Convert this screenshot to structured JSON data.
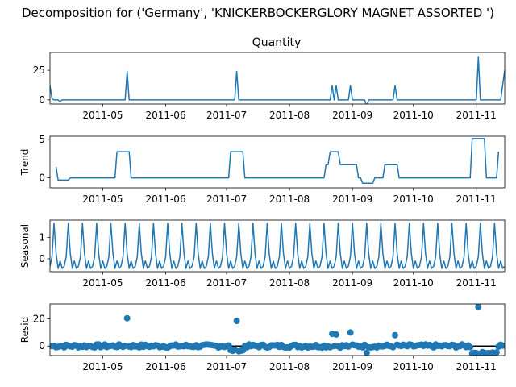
{
  "chart_data": {
    "type": "line",
    "suptitle": "Decomposition for ('Germany', 'KNICKERBOCKERGLORY MAGNET ASSORTED ')",
    "line_color": "#1f77b4",
    "x_range": [
      "2011-04-05",
      "2011-11-15"
    ],
    "x_ticks": [
      "2011-05-01",
      "2011-06-01",
      "2011-07-01",
      "2011-08-01",
      "2011-09-01",
      "2011-10-01",
      "2011-11-01"
    ],
    "x_tick_labels": [
      "2011-05",
      "2011-06",
      "2011-07",
      "2011-08",
      "2011-09",
      "2011-10",
      "2011-11"
    ],
    "panels": [
      {
        "key": "quantity",
        "title": "Quantity",
        "ylabel": "",
        "kind": "line",
        "ylim": [
          -3.5,
          40
        ],
        "yticks": [
          0,
          25
        ],
        "points": [
          [
            "2011-04-05",
            12
          ],
          [
            "2011-04-06",
            1
          ],
          [
            "2011-04-07",
            0
          ],
          [
            "2011-04-08",
            0
          ],
          [
            "2011-04-09",
            0
          ],
          [
            "2011-04-10",
            -1.5
          ],
          [
            "2011-04-11",
            0
          ],
          [
            "2011-05-12",
            0
          ],
          [
            "2011-05-13",
            24
          ],
          [
            "2011-05-14",
            0
          ],
          [
            "2011-07-05",
            0
          ],
          [
            "2011-07-06",
            24
          ],
          [
            "2011-07-07",
            0
          ],
          [
            "2011-08-21",
            0
          ],
          [
            "2011-08-22",
            12
          ],
          [
            "2011-08-23",
            0
          ],
          [
            "2011-08-24",
            12
          ],
          [
            "2011-08-25",
            0
          ],
          [
            "2011-08-30",
            0
          ],
          [
            "2011-08-31",
            12
          ],
          [
            "2011-09-01",
            0
          ],
          [
            "2011-09-07",
            0
          ],
          [
            "2011-09-08",
            -5.5
          ],
          [
            "2011-09-09",
            0
          ],
          [
            "2011-09-21",
            0
          ],
          [
            "2011-09-22",
            12
          ],
          [
            "2011-09-23",
            0
          ],
          [
            "2011-11-01",
            0
          ],
          [
            "2011-11-02",
            36
          ],
          [
            "2011-11-03",
            0
          ],
          [
            "2011-11-13",
            0
          ],
          [
            "2011-11-15",
            25
          ]
        ]
      },
      {
        "key": "trend",
        "title": "",
        "ylabel": "Trend",
        "kind": "line",
        "ylim": [
          -1.3,
          5.4
        ],
        "yticks": [
          0,
          5
        ],
        "points": [
          [
            "2011-04-08",
            1.4
          ],
          [
            "2011-04-09",
            -0.3
          ],
          [
            "2011-04-14",
            -0.3
          ],
          [
            "2011-04-15",
            0
          ],
          [
            "2011-05-07",
            0
          ],
          [
            "2011-05-08",
            3.4
          ],
          [
            "2011-05-14",
            3.4
          ],
          [
            "2011-05-15",
            0
          ],
          [
            "2011-07-02",
            0
          ],
          [
            "2011-07-03",
            3.4
          ],
          [
            "2011-07-09",
            3.4
          ],
          [
            "2011-07-10",
            0
          ],
          [
            "2011-08-18",
            0
          ],
          [
            "2011-08-19",
            1.7
          ],
          [
            "2011-08-20",
            1.7
          ],
          [
            "2011-08-21",
            3.4
          ],
          [
            "2011-08-25",
            3.4
          ],
          [
            "2011-08-26",
            1.7
          ],
          [
            "2011-09-03",
            1.7
          ],
          [
            "2011-09-04",
            0
          ],
          [
            "2011-09-05",
            0
          ],
          [
            "2011-09-06",
            -0.7
          ],
          [
            "2011-09-11",
            -0.7
          ],
          [
            "2011-09-12",
            0
          ],
          [
            "2011-09-16",
            0
          ],
          [
            "2011-09-17",
            1.7
          ],
          [
            "2011-09-23",
            1.7
          ],
          [
            "2011-09-24",
            0
          ],
          [
            "2011-10-29",
            0
          ],
          [
            "2011-10-30",
            5.1
          ],
          [
            "2011-11-05",
            5.1
          ],
          [
            "2011-11-06",
            0
          ],
          [
            "2011-11-11",
            0
          ],
          [
            "2011-11-12",
            3.4
          ]
        ]
      },
      {
        "key": "seasonal",
        "title": "",
        "ylabel": "Seasonal",
        "kind": "periodic",
        "ylim": [
          -0.6,
          1.8
        ],
        "yticks": [
          0,
          1
        ],
        "period_pattern": [
          -0.35,
          0.1,
          1.65,
          0.25,
          -0.45,
          -0.1,
          -0.45
        ],
        "pattern_start": "2011-04-05",
        "end": "2011-11-15"
      },
      {
        "key": "resid",
        "title": "",
        "ylabel": "Resid",
        "kind": "scatter",
        "ylim": [
          -7,
          31
        ],
        "yticks": [
          0,
          20
        ],
        "baseline": 0,
        "noise_amplitude": 1.5,
        "outliers": [
          [
            "2011-05-13",
            20.5
          ],
          [
            "2011-07-06",
            18.5
          ],
          [
            "2011-08-22",
            9
          ],
          [
            "2011-08-24",
            8.5
          ],
          [
            "2011-08-31",
            10
          ],
          [
            "2011-09-08",
            -5
          ],
          [
            "2011-09-22",
            8
          ],
          [
            "2011-11-02",
            29
          ]
        ],
        "low_runs": [
          [
            "2011-07-03",
            "2011-07-09",
            -3.3
          ],
          [
            "2011-10-30",
            "2011-11-11",
            -5
          ]
        ]
      }
    ]
  }
}
